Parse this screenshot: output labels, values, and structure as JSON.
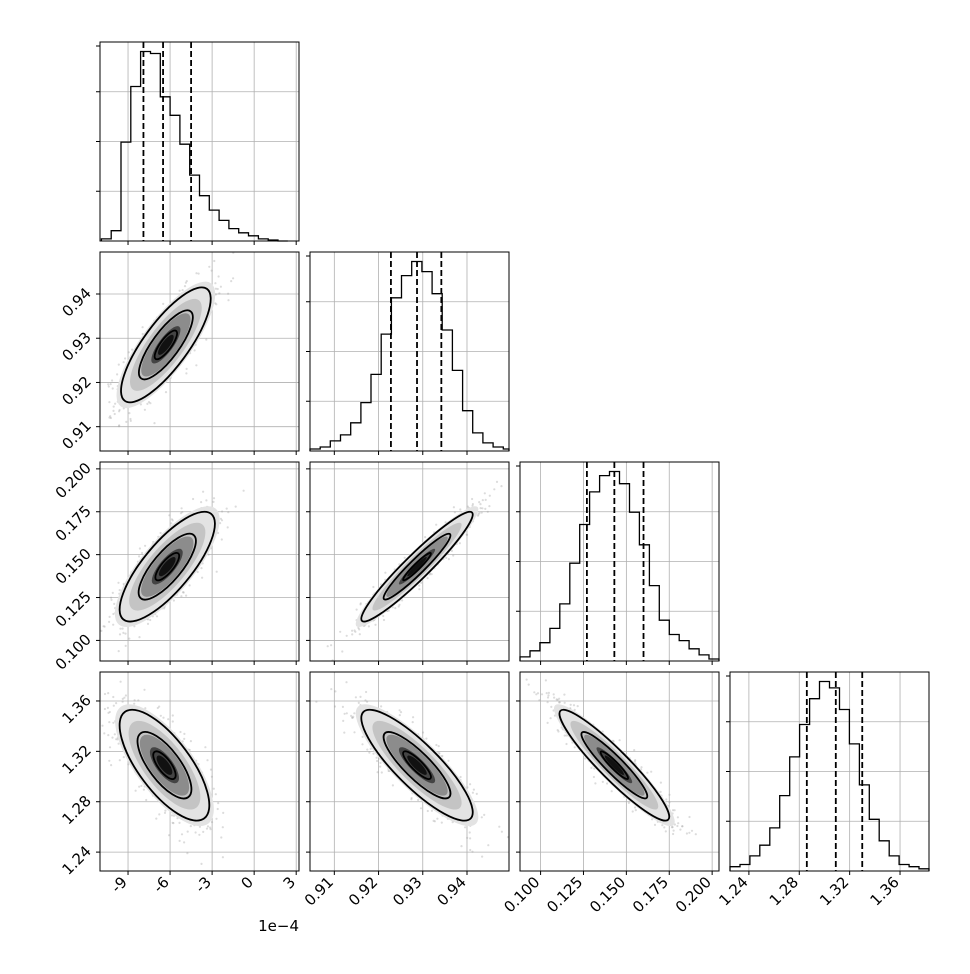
{
  "chart_data": {
    "type": "corner",
    "parameters": [
      {
        "range": [
          -11.0,
          3.2
        ],
        "ticks": [
          "-9",
          "-6",
          "-3",
          "0",
          "3"
        ],
        "tick_values": [
          -9,
          -6,
          -3,
          0,
          3
        ],
        "offset_label": "1e−4"
      },
      {
        "range": [
          0.9045,
          0.9495
        ],
        "ticks": [
          "0.91",
          "0.92",
          "0.93",
          "0.94"
        ],
        "tick_values": [
          0.91,
          0.92,
          0.93,
          0.94
        ]
      },
      {
        "range": [
          0.088,
          0.204
        ],
        "ticks": [
          "0.100",
          "0.125",
          "0.150",
          "0.175",
          "0.200"
        ],
        "tick_values": [
          0.1,
          0.125,
          0.15,
          0.175,
          0.2
        ]
      },
      {
        "range": [
          1.225,
          1.383
        ],
        "ticks": [
          "1.24",
          "1.28",
          "1.32",
          "1.36"
        ],
        "tick_values": [
          1.24,
          1.28,
          1.32,
          1.36
        ]
      }
    ],
    "histograms": [
      {
        "quantiles": [
          -7.9,
          -6.5,
          -4.5
        ],
        "edges": [
          -10.9,
          -10.2,
          -9.5,
          -8.8,
          -8.1,
          -7.4,
          -6.7,
          -6.0,
          -5.3,
          -4.6,
          -3.9,
          -3.2,
          -2.5,
          -1.8,
          -1.1,
          -0.4,
          0.3,
          1.0,
          1.7,
          2.4
        ],
        "counts": [
          0.01,
          0.05,
          0.48,
          0.75,
          0.92,
          0.91,
          0.7,
          0.61,
          0.47,
          0.32,
          0.22,
          0.15,
          0.1,
          0.06,
          0.04,
          0.025,
          0.01,
          0.005,
          0.0
        ]
      },
      {
        "quantiles": [
          0.9228,
          0.9287,
          0.9342
        ],
        "edges": [
          0.9045,
          0.9068,
          0.9091,
          0.9114,
          0.9137,
          0.916,
          0.9183,
          0.9206,
          0.9229,
          0.9252,
          0.9275,
          0.9298,
          0.9321,
          0.9344,
          0.9367,
          0.939,
          0.9413,
          0.9436,
          0.9459,
          0.9482,
          0.9495
        ],
        "counts": [
          0.01,
          0.02,
          0.05,
          0.08,
          0.14,
          0.24,
          0.38,
          0.58,
          0.76,
          0.87,
          0.94,
          0.89,
          0.78,
          0.6,
          0.4,
          0.2,
          0.09,
          0.04,
          0.02,
          0.01
        ]
      },
      {
        "quantiles": [
          0.127,
          0.143,
          0.16
        ],
        "edges": [
          0.088,
          0.0938,
          0.0996,
          0.1054,
          0.1112,
          0.117,
          0.1228,
          0.1286,
          0.1344,
          0.1402,
          0.146,
          0.1518,
          0.1576,
          0.1634,
          0.1692,
          0.175,
          0.1808,
          0.1866,
          0.1924,
          0.1982,
          0.204
        ],
        "counts": [
          0.02,
          0.05,
          0.09,
          0.16,
          0.28,
          0.48,
          0.67,
          0.83,
          0.91,
          0.93,
          0.87,
          0.73,
          0.57,
          0.37,
          0.2,
          0.13,
          0.1,
          0.06,
          0.03,
          0.01
        ]
      },
      {
        "quantiles": [
          1.286,
          1.309,
          1.33
        ],
        "edges": [
          1.225,
          1.2329,
          1.2408,
          1.2487,
          1.2566,
          1.2645,
          1.2724,
          1.2803,
          1.2882,
          1.2961,
          1.304,
          1.3119,
          1.3198,
          1.3277,
          1.3356,
          1.3435,
          1.3514,
          1.3593,
          1.3672,
          1.3751,
          1.383
        ],
        "counts": [
          0.02,
          0.03,
          0.07,
          0.12,
          0.2,
          0.35,
          0.53,
          0.68,
          0.8,
          0.88,
          0.85,
          0.75,
          0.59,
          0.4,
          0.24,
          0.14,
          0.07,
          0.03,
          0.02,
          0.01
        ]
      }
    ],
    "scatter_panels": [
      {
        "x_param": 0,
        "y_param": 1,
        "mean": [
          -6.3,
          0.9285
        ],
        "sd": [
          1.6,
          0.0065
        ],
        "corr": 0.8
      },
      {
        "x_param": 0,
        "y_param": 2,
        "mean": [
          -6.2,
          0.143
        ],
        "sd": [
          1.7,
          0.016
        ],
        "corr": 0.78
      },
      {
        "x_param": 1,
        "y_param": 2,
        "mean": [
          0.9287,
          0.143
        ],
        "sd": [
          0.0063,
          0.016
        ],
        "corr": 0.95
      },
      {
        "x_param": 0,
        "y_param": 3,
        "mean": [
          -6.4,
          1.309
        ],
        "sd": [
          1.6,
          0.022
        ],
        "corr": -0.72
      },
      {
        "x_param": 1,
        "y_param": 3,
        "mean": [
          0.9287,
          1.309
        ],
        "sd": [
          0.0063,
          0.022
        ],
        "corr": -0.85
      },
      {
        "x_param": 2,
        "y_param": 3,
        "mean": [
          0.143,
          1.309
        ],
        "sd": [
          0.016,
          0.022
        ],
        "corr": -0.93
      }
    ],
    "contour_levels": [
      0.5,
      1.2,
      2.0
    ],
    "grid": true,
    "colors": {
      "hist_line": "#000000",
      "quantile_line": "#000000",
      "grid": "#b0b0b0",
      "points": "#9a9a9a",
      "contour": "#000000"
    }
  }
}
